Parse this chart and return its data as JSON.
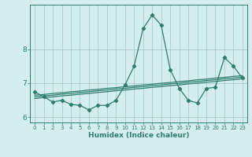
{
  "x": [
    0,
    1,
    2,
    3,
    4,
    5,
    6,
    7,
    8,
    9,
    10,
    11,
    12,
    13,
    14,
    15,
    16,
    17,
    18,
    19,
    20,
    21,
    22,
    23
  ],
  "y_main": [
    6.75,
    6.6,
    6.45,
    6.5,
    6.38,
    6.35,
    6.22,
    6.35,
    6.35,
    6.5,
    6.95,
    7.5,
    8.6,
    9.0,
    8.7,
    7.4,
    6.85,
    6.5,
    6.42,
    6.85,
    6.88,
    7.75,
    7.5,
    7.15
  ],
  "y_reg1": [
    6.65,
    6.67,
    6.7,
    6.72,
    6.75,
    6.77,
    6.8,
    6.82,
    6.85,
    6.87,
    6.9,
    6.92,
    6.95,
    6.97,
    7.0,
    7.02,
    7.05,
    7.07,
    7.1,
    7.12,
    7.15,
    7.17,
    7.2,
    7.22
  ],
  "y_reg2": [
    6.6,
    6.63,
    6.65,
    6.68,
    6.7,
    6.73,
    6.75,
    6.78,
    6.8,
    6.83,
    6.85,
    6.88,
    6.9,
    6.93,
    6.95,
    6.98,
    7.0,
    7.03,
    7.05,
    7.08,
    7.1,
    7.13,
    7.15,
    7.18
  ],
  "y_reg3": [
    6.55,
    6.58,
    6.6,
    6.63,
    6.65,
    6.68,
    6.7,
    6.73,
    6.75,
    6.78,
    6.8,
    6.83,
    6.85,
    6.88,
    6.9,
    6.93,
    6.95,
    6.98,
    7.0,
    7.03,
    7.05,
    7.08,
    7.1,
    7.13
  ],
  "line_color": "#2e7d6e",
  "bg_color": "#d4eeee",
  "grid_color": "#a0c8c8",
  "xlabel": "Humidex (Indice chaleur)",
  "ylim": [
    5.85,
    9.3
  ],
  "xlim": [
    -0.5,
    23.5
  ],
  "yticks": [
    6,
    7,
    8
  ],
  "xticks": [
    0,
    1,
    2,
    3,
    4,
    5,
    6,
    7,
    8,
    9,
    10,
    11,
    12,
    13,
    14,
    15,
    16,
    17,
    18,
    19,
    20,
    21,
    22,
    23
  ],
  "xlabel_fontsize": 6.5,
  "ytick_fontsize": 6.5,
  "xtick_fontsize": 5.0
}
